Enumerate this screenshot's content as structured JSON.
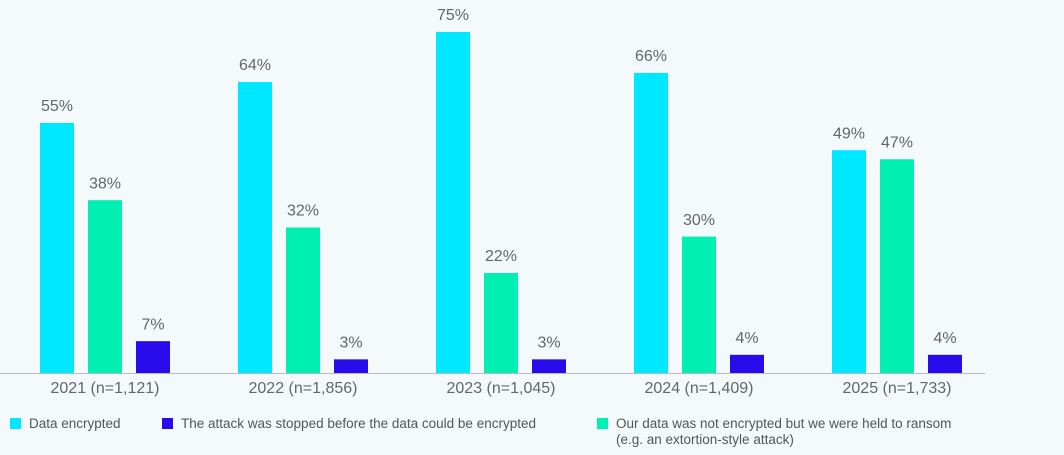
{
  "chart_data": {
    "type": "bar",
    "categories": [
      "2021 (n=1,121)",
      "2022 (n=1,856)",
      "2023 (n=1,045)",
      "2024 (n=1,409)",
      "2025 (n=1,733)"
    ],
    "series": [
      {
        "name": "Data encrypted",
        "color": "#00e8ff",
        "values": [
          55,
          64,
          75,
          66,
          49
        ],
        "value_labels": [
          "55%",
          "64%",
          "75%",
          "66%",
          "49%"
        ]
      },
      {
        "name": "Our data was not encrypted but we were held to ransom (e.g. an extortion-style attack)",
        "color": "#00efb2",
        "values": [
          38,
          32,
          22,
          30,
          47
        ],
        "value_labels": [
          "38%",
          "32%",
          "22%",
          "30%",
          "47%"
        ]
      },
      {
        "name": "The attack was stopped before the data could be encrypted",
        "color": "#2a0bec",
        "values": [
          7,
          3,
          3,
          4,
          4
        ],
        "value_labels": [
          "7%",
          "3%",
          "3%",
          "4%",
          "4%"
        ]
      }
    ]
  }
}
